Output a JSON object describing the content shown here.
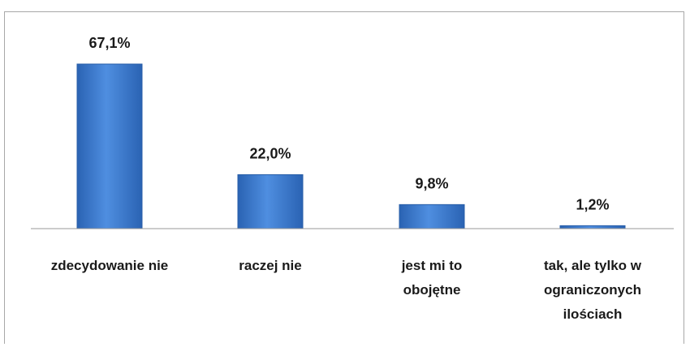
{
  "chart_data": {
    "type": "bar",
    "categories": [
      "zdecydowanie nie",
      "raczej nie",
      "jest mi to obojętne",
      "tak, ale tylko w ograniczonych ilościach"
    ],
    "category_lines": [
      [
        "zdecydowanie nie"
      ],
      [
        "raczej nie"
      ],
      [
        "jest mi to",
        "obojętne"
      ],
      [
        "tak, ale tylko w",
        "ograniczonych",
        "ilościach"
      ]
    ],
    "values": [
      67.1,
      22.0,
      9.8,
      1.2
    ],
    "value_labels": [
      "67,1%",
      "22,0%",
      "9,8%",
      "1,2%"
    ],
    "ylim": [
      0,
      70
    ],
    "grid": false,
    "legend": "none",
    "bar_color": "#3f7fd0",
    "axis_color": "#9a9a9a"
  }
}
